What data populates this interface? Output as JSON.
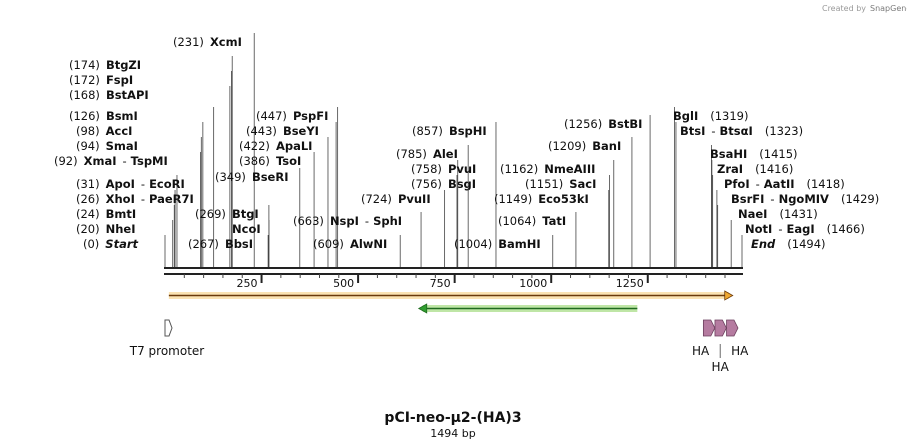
{
  "credit": {
    "created_by": "Created by",
    "brand": "SnapGene"
  },
  "map_title": "pCI-neo-μ2-(HA)3",
  "map_length": "1494 bp",
  "sequence_length": 1494,
  "ruler_ticks": [
    "250",
    "500",
    "750",
    "1000",
    "1250"
  ],
  "sites": [
    {
      "pos": "(0)",
      "name": "Start",
      "n2": "",
      "p2": "",
      "italic": true,
      "at": 0
    },
    {
      "pos": "(20)",
      "name": "NheI",
      "n2": "",
      "p2": "",
      "italic": false,
      "at": 20
    },
    {
      "pos": "(24)",
      "name": "BmtI",
      "n2": "",
      "p2": "",
      "italic": false,
      "at": 24
    },
    {
      "pos": "(26)",
      "name": "XhoI",
      "n2": "PaeR7I",
      "p2": "",
      "italic": false,
      "at": 26
    },
    {
      "pos": "(31)",
      "name": "ApoI",
      "n2": "EcoRI",
      "p2": "",
      "italic": false,
      "at": 31
    },
    {
      "pos": "(92)",
      "name": "XmaI",
      "n2": "TspMI",
      "p2": "",
      "italic": false,
      "at": 92
    },
    {
      "pos": "(94)",
      "name": "SmaI",
      "n2": "",
      "p2": "",
      "italic": false,
      "at": 94
    },
    {
      "pos": "(98)",
      "name": "AccI",
      "n2": "",
      "p2": "",
      "italic": false,
      "at": 98
    },
    {
      "pos": "(126)",
      "name": "BsmI",
      "n2": "",
      "p2": "",
      "italic": false,
      "at": 126
    },
    {
      "pos": "(168)",
      "name": "BstAPI",
      "n2": "",
      "p2": "",
      "italic": false,
      "at": 168
    },
    {
      "pos": "(172)",
      "name": "FspI",
      "n2": "",
      "p2": "",
      "italic": false,
      "at": 172
    },
    {
      "pos": "(174)",
      "name": "BtgZI",
      "n2": "",
      "p2": "",
      "italic": false,
      "at": 174
    },
    {
      "pos": "(231)",
      "name": "XcmI",
      "n2": "",
      "p2": "",
      "italic": false,
      "at": 231
    },
    {
      "pos": "(267)",
      "name": "BbsI",
      "n2": "",
      "p2": "",
      "italic": false,
      "at": 267
    },
    {
      "pos": "(269)",
      "name": "BtgI",
      "n2": "",
      "p2": "",
      "italic": false,
      "at": 269
    },
    {
      "pos": "",
      "name": "NcoI",
      "n2": "",
      "p2": "",
      "italic": false,
      "at": 269
    },
    {
      "pos": "(349)",
      "name": "BseRI",
      "n2": "",
      "p2": "",
      "italic": false,
      "at": 349
    },
    {
      "pos": "(386)",
      "name": "TsoI",
      "n2": "",
      "p2": "",
      "italic": false,
      "at": 386
    },
    {
      "pos": "(422)",
      "name": "ApaLI",
      "n2": "",
      "p2": "",
      "italic": false,
      "at": 422
    },
    {
      "pos": "(443)",
      "name": "BseYI",
      "n2": "",
      "p2": "",
      "italic": false,
      "at": 443
    },
    {
      "pos": "(447)",
      "name": "PspFI",
      "n2": "",
      "p2": "",
      "italic": false,
      "at": 447
    },
    {
      "pos": "(609)",
      "name": "AlwNI",
      "n2": "",
      "p2": "",
      "italic": false,
      "at": 609
    },
    {
      "pos": "(663)",
      "name": "NspI",
      "n2": "SphI",
      "p2": "",
      "italic": false,
      "at": 663
    },
    {
      "pos": "(724)",
      "name": "PvuII",
      "n2": "",
      "p2": "",
      "italic": false,
      "at": 724
    },
    {
      "pos": "(756)",
      "name": "BsgI",
      "n2": "",
      "p2": "",
      "italic": false,
      "at": 756
    },
    {
      "pos": "(758)",
      "name": "PvuI",
      "n2": "",
      "p2": "",
      "italic": false,
      "at": 758
    },
    {
      "pos": "(785)",
      "name": "AleI",
      "n2": "",
      "p2": "",
      "italic": false,
      "at": 785
    },
    {
      "pos": "(857)",
      "name": "BspHI",
      "n2": "",
      "p2": "",
      "italic": false,
      "at": 857
    },
    {
      "pos": "(1004)",
      "name": "BamHI",
      "n2": "",
      "p2": "",
      "italic": false,
      "at": 1004
    },
    {
      "pos": "(1064)",
      "name": "TatI",
      "n2": "",
      "p2": "",
      "italic": false,
      "at": 1064
    },
    {
      "pos": "(1149)",
      "name": "Eco53kI",
      "n2": "",
      "p2": "",
      "italic": false,
      "at": 1149
    },
    {
      "pos": "(1151)",
      "name": "SacI",
      "n2": "",
      "p2": "",
      "italic": false,
      "at": 1151
    },
    {
      "pos": "(1162)",
      "name": "NmeAIII",
      "n2": "",
      "p2": "",
      "italic": false,
      "at": 1162
    },
    {
      "pos": "(1209)",
      "name": "BanI",
      "n2": "",
      "p2": "",
      "italic": false,
      "at": 1209
    },
    {
      "pos": "(1256)",
      "name": "BstBI",
      "n2": "",
      "p2": "",
      "italic": false,
      "at": 1256
    },
    {
      "pos": "(1319)",
      "name": "BglI",
      "n2": "",
      "p2": "",
      "italic": false,
      "at": 1319
    },
    {
      "pos": "(1323)",
      "name": "BtsI",
      "n2": "BtsαI",
      "p2": "",
      "italic": false,
      "at": 1323
    },
    {
      "pos": "(1415)",
      "name": "BsaHI",
      "n2": "",
      "p2": "",
      "italic": false,
      "at": 1415
    },
    {
      "pos": "(1416)",
      "name": "ZraI",
      "n2": "",
      "p2": "",
      "italic": false,
      "at": 1416
    },
    {
      "pos": "(1418)",
      "name": "PfoI",
      "n2": "AatII",
      "p2": "",
      "italic": false,
      "at": 1418
    },
    {
      "pos": "(1429)",
      "name": "BsrFI",
      "n2": "NgoMIV",
      "p2": "",
      "italic": false,
      "at": 1429
    },
    {
      "pos": "(1431)",
      "name": "NaeI",
      "n2": "",
      "p2": "",
      "italic": false,
      "at": 1431
    },
    {
      "pos": "(1466)",
      "name": "NotI",
      "n2": "EagI",
      "p2": "",
      "italic": false,
      "at": 1466
    },
    {
      "pos": "(1494)",
      "name": "End",
      "n2": "",
      "p2": "",
      "italic": true,
      "at": 1494
    }
  ],
  "features": {
    "orange_orf": {
      "start": 10,
      "end": 1470,
      "direction": "forward",
      "color": "#f0a830"
    },
    "green_orf": {
      "start": 657,
      "end": 1223,
      "direction": "reverse",
      "color": "#2f9e2f"
    },
    "t7_promoter": {
      "label": "T7 promoter",
      "start": 0,
      "end": 19,
      "direction": "forward"
    },
    "ha_tags": [
      {
        "label": "HA",
        "start": 1394,
        "end": 1421
      },
      {
        "label": "HA",
        "start": 1424,
        "end": 1451
      },
      {
        "label": "HA",
        "start": 1454,
        "end": 1481
      }
    ],
    "ha_color": "#b57ba0"
  }
}
